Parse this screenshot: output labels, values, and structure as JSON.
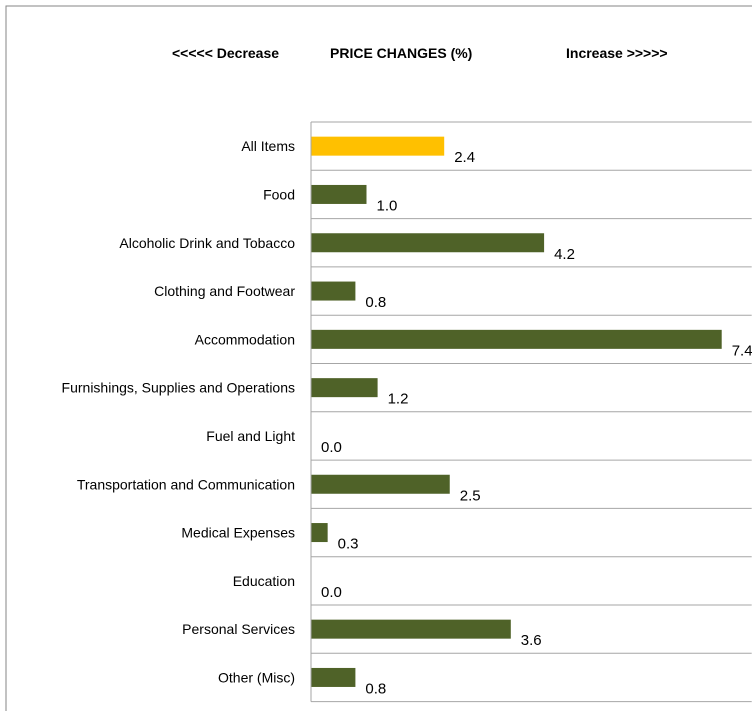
{
  "header": {
    "decrease_label": "<<<<< Decrease",
    "title": "PRICE  CHANGES (%)",
    "increase_label": "Increase   >>>>>"
  },
  "colors": {
    "highlight_bar": "#FFC000",
    "bar": "#4F6228",
    "grid": "#A6A6A6",
    "border": "#868686"
  },
  "chart_data": {
    "type": "bar",
    "orientation": "horizontal",
    "title": "PRICE  CHANGES (%)",
    "categories": [
      "All Items",
      "Food",
      "Alcoholic Drink and Tobacco",
      "Clothing and Footwear",
      "Accommodation",
      "Furnishings, Supplies and Operations",
      "Fuel and Light",
      "Transportation and Communication",
      "Medical Expenses",
      "Education",
      "Personal Services",
      "Other (Misc)"
    ],
    "values": [
      2.4,
      1.0,
      4.2,
      0.8,
      7.4,
      1.2,
      0.0,
      2.5,
      0.3,
      0.0,
      3.6,
      0.8
    ],
    "value_labels": [
      "2.4",
      "1.0",
      "4.2",
      "0.8",
      "7.4",
      "1.2",
      "0.0",
      "2.5",
      "0.3",
      "0.0",
      "3.6",
      "0.8"
    ],
    "highlight_category": "All Items",
    "xlim": [
      0,
      7.4
    ],
    "grid": true,
    "legend": "none",
    "xlabel": "",
    "ylabel": ""
  }
}
